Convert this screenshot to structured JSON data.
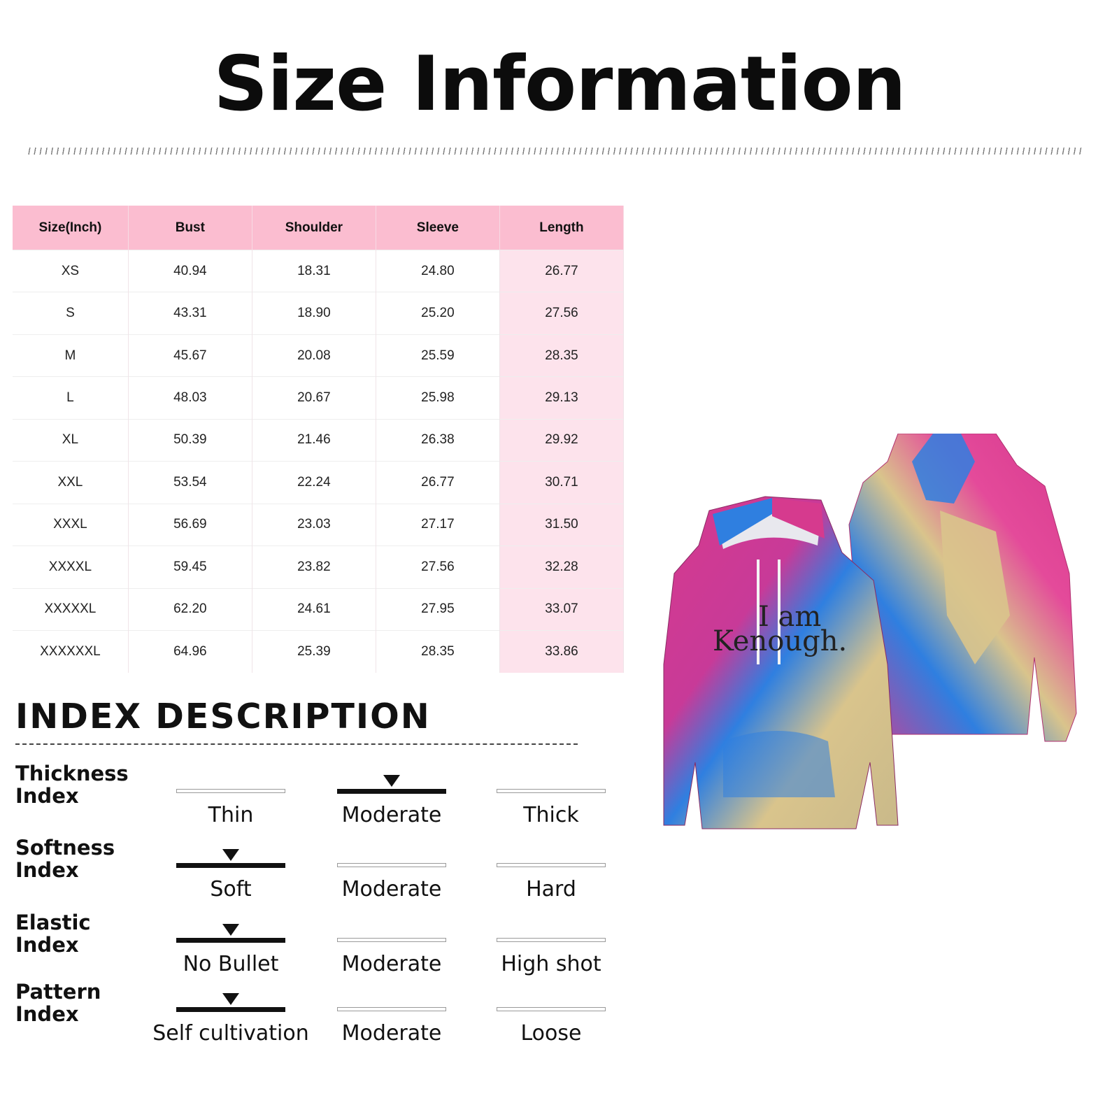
{
  "title": "Size Information",
  "table": {
    "headers": [
      "Size(Inch)",
      "Bust",
      "Shoulder",
      "Sleeve",
      "Length"
    ],
    "rows": [
      [
        "XS",
        "40.94",
        "18.31",
        "24.80",
        "26.77"
      ],
      [
        "S",
        "43.31",
        "18.90",
        "25.20",
        "27.56"
      ],
      [
        "M",
        "45.67",
        "20.08",
        "25.59",
        "28.35"
      ],
      [
        "L",
        "48.03",
        "20.67",
        "25.98",
        "29.13"
      ],
      [
        "XL",
        "50.39",
        "21.46",
        "26.38",
        "29.92"
      ],
      [
        "XXL",
        "53.54",
        "22.24",
        "26.77",
        "30.71"
      ],
      [
        "XXXL",
        "56.69",
        "23.03",
        "27.17",
        "31.50"
      ],
      [
        "XXXXL",
        "59.45",
        "23.82",
        "27.56",
        "32.28"
      ],
      [
        "XXXXXL",
        "62.20",
        "24.61",
        "27.95",
        "33.07"
      ],
      [
        "XXXXXXL",
        "64.96",
        "25.39",
        "28.35",
        "33.86"
      ]
    ],
    "header_color": "#fbbdd0",
    "length_column_color": "#fde3ec"
  },
  "index_title": "INDEX DESCRIPTION",
  "indices": [
    {
      "label_line1": "Thickness",
      "label_line2": "Index",
      "options": [
        "Thin",
        "Moderate",
        "Thick"
      ],
      "selected": 1
    },
    {
      "label_line1": "Softness",
      "label_line2": "Index",
      "options": [
        "Soft",
        "Moderate",
        "Hard"
      ],
      "selected": 0
    },
    {
      "label_line1": "Elastic",
      "label_line2": "Index",
      "options": [
        "No Bullet",
        "Moderate",
        "High shot"
      ],
      "selected": 0
    },
    {
      "label_line1": "Pattern",
      "label_line2": "Index",
      "options": [
        "Self cultivation",
        "Moderate",
        "Loose"
      ],
      "selected": 0
    }
  ],
  "product": {
    "print_line1": "I am",
    "print_line2": "Kenough.",
    "colors": [
      "#d63a8e",
      "#2f7fe0",
      "#d9c48c"
    ]
  }
}
